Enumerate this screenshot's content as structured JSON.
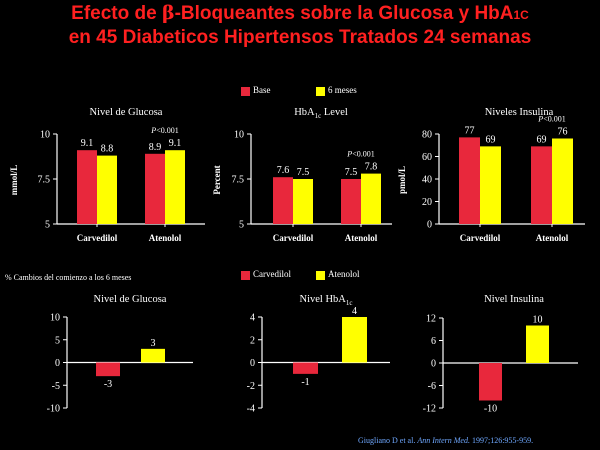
{
  "slide": {
    "title_line1_pre": "Efecto de ",
    "title_beta": "β",
    "title_line1_mid": "-Bloqueantes sobre la Glucosa y HbA",
    "title_line1_sub": "1C",
    "title_line2": "en 45  Diabeticos Hipertensos Tratados 24 semanas",
    "legend_top": [
      {
        "label": "Base",
        "color": "#e8283c"
      },
      {
        "label": "6 meses",
        "color": "#ffff00"
      }
    ],
    "legend_bottom": [
      {
        "label": "Carvedilol",
        "color": "#e8283c"
      },
      {
        "label": "Atenolol",
        "color": "#ffff00"
      }
    ],
    "section_note": "% Cambios del comienzo a los 6 meses",
    "citation_pre": "Giugliano D et al. ",
    "citation_journal": "Ann Intern Med.",
    "citation_post": " 1997;126:955-959."
  },
  "colors": {
    "red": "#e8283c",
    "yellow": "#ffff00",
    "axis": "#ffffff",
    "title": "#ff2020",
    "citation": "#6fa8ff"
  },
  "chart_data": [
    {
      "type": "bar",
      "title": "Nivel de Glucosa",
      "ylabel": "mmol/L",
      "categories": [
        "Carvedilol",
        "Atenolol"
      ],
      "series": [
        {
          "name": "Base",
          "values": [
            9.1,
            8.9
          ]
        },
        {
          "name": "6 meses",
          "values": [
            8.8,
            9.1
          ]
        }
      ],
      "ylim": [
        5,
        10
      ],
      "yticks": [
        5,
        7.5,
        10
      ],
      "ytick_labels": [
        "5",
        "7.5",
        "10"
      ],
      "annotation": {
        "text": "P<0.001",
        "category_index": 1
      },
      "data_labels": [
        "9.1",
        "8.8",
        "8.9",
        "9.1"
      ]
    },
    {
      "type": "bar",
      "title_main": "HbA",
      "title_sub": "1c",
      "title_tail": " Level",
      "ylabel": "Percent",
      "categories": [
        "Carvedilol",
        "Atenolol"
      ],
      "series": [
        {
          "name": "Base",
          "values": [
            7.6,
            7.5
          ]
        },
        {
          "name": "6 meses",
          "values": [
            7.5,
            7.8
          ]
        }
      ],
      "ylim": [
        5,
        10
      ],
      "yticks": [
        5,
        7.5,
        10
      ],
      "ytick_labels": [
        "5",
        "7.5",
        "10"
      ],
      "annotation": {
        "text": "P<0.001",
        "category_index": 1
      },
      "data_labels": [
        "7.6",
        "7.5",
        "7.5",
        "7.8"
      ]
    },
    {
      "type": "bar",
      "title": "Niveles Insulina",
      "ylabel": "pmol/L",
      "categories": [
        "Carvedilol",
        "Atenolol"
      ],
      "series": [
        {
          "name": "Base",
          "values": [
            77,
            69
          ]
        },
        {
          "name": "6 meses",
          "values": [
            69,
            76
          ]
        }
      ],
      "ylim": [
        0,
        80
      ],
      "yticks": [
        0,
        20,
        40,
        60,
        80
      ],
      "ytick_labels": [
        "0",
        "20",
        "40",
        "60",
        "80"
      ],
      "annotation": {
        "text": "P<0.001",
        "category_index": 1
      },
      "data_labels": [
        "77",
        "69",
        "69",
        "76"
      ]
    },
    {
      "type": "bar",
      "title": "Nivel de Glucosa",
      "categories": [
        "Carvedilol",
        "Atenolol"
      ],
      "values": [
        -3,
        3
      ],
      "ylim": [
        -10,
        10
      ],
      "yticks": [
        -10,
        -5,
        0,
        5,
        10
      ],
      "ytick_labels": [
        "-10",
        "-5",
        "0",
        "5",
        "10"
      ],
      "data_labels": [
        "-3",
        "3"
      ]
    },
    {
      "type": "bar",
      "title_main": "Nivel HbA",
      "title_sub": "1c",
      "title_tail": "",
      "categories": [
        "Carvedilol",
        "Atenolol"
      ],
      "values": [
        -1,
        4
      ],
      "ylim": [
        -4,
        4
      ],
      "yticks": [
        -4,
        -2,
        0,
        2,
        4
      ],
      "ytick_labels": [
        "-4",
        "-2",
        "0",
        "2",
        "4"
      ],
      "data_labels": [
        "-1",
        "4"
      ]
    },
    {
      "type": "bar",
      "title": "Nivel Insulina",
      "categories": [
        "Carvedilol",
        "Atenolol"
      ],
      "values": [
        -10,
        10
      ],
      "ylim": [
        -12,
        12
      ],
      "yticks": [
        -12,
        -6,
        0,
        6,
        12
      ],
      "ytick_labels": [
        "-12",
        "-6",
        "0",
        "6",
        "12"
      ],
      "data_labels": [
        "-10",
        "10"
      ]
    }
  ]
}
